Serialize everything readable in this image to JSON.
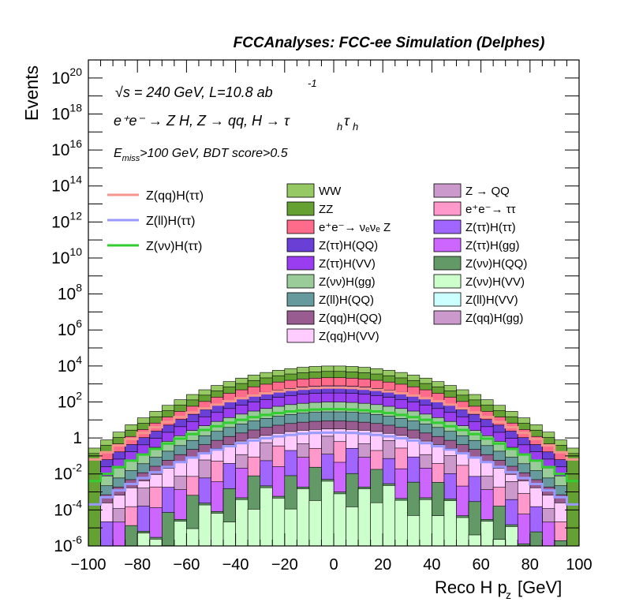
{
  "chart_data": {
    "type": "area",
    "title": "FCCAnalyses: FCC-ee Simulation (Delphes)",
    "xlabel_main": "Reco H p",
    "xlabel_sub": "z",
    "xlabel_unit": "[GeV]",
    "ylabel": "Events",
    "log_y": true,
    "xlim": [
      -100,
      100
    ],
    "ylim_exp": [
      -6,
      21
    ],
    "bin_width": 5,
    "x_ticks": [
      "−100",
      "−80",
      "−60",
      "−40",
      "−20",
      "0",
      "20",
      "40",
      "60",
      "80",
      "100"
    ],
    "y_ticks": [
      {
        "base": "10",
        "exp": "-6",
        "value_exp": -6
      },
      {
        "base": "10",
        "exp": "-4",
        "value_exp": -4
      },
      {
        "base": "10",
        "exp": "-2",
        "value_exp": -2
      },
      {
        "base": "1",
        "exp": "",
        "value_exp": 0
      },
      {
        "base": "10",
        "exp": "2",
        "value_exp": 2
      },
      {
        "base": "10",
        "exp": "4",
        "value_exp": 4
      },
      {
        "base": "10",
        "exp": "6",
        "value_exp": 6
      },
      {
        "base": "10",
        "exp": "8",
        "value_exp": 8
      },
      {
        "base": "10",
        "exp": "10",
        "value_exp": 10
      },
      {
        "base": "10",
        "exp": "12",
        "value_exp": 12
      },
      {
        "base": "10",
        "exp": "14",
        "value_exp": 14
      },
      {
        "base": "10",
        "exp": "16",
        "value_exp": 16
      },
      {
        "base": "10",
        "exp": "18",
        "value_exp": 18
      },
      {
        "base": "10",
        "exp": "20",
        "value_exp": 20
      }
    ],
    "annotations": {
      "energy": "√s = 240 GeV, L=10.8 ab",
      "energy_sup": "-1",
      "process": "e⁺e⁻ → Z H, Z → qq, H → τ",
      "process_sub1": "h",
      "process_tau": "τ",
      "process_sub2": "h",
      "cut_pre": "E",
      "cut_sub": "miss",
      "cut_post": ">100 GeV, BDT score>0.5"
    },
    "stack_peak_log10": [
      4.0,
      3.7,
      3.35,
      2.9,
      2.5,
      2.0,
      1.45,
      0.95,
      0.5,
      0.1,
      -0.2,
      -0.55,
      -1.0,
      -1.6,
      -2.4
    ],
    "stack_fill_colors": [
      "#96c864",
      "#64a032",
      "#ff6b8a",
      "#6a3fd6",
      "#9a3cf0",
      "#99cc99",
      "#679a9c",
      "#995c91",
      "#ffccff",
      "#cc99cc",
      "#ff99cc",
      "#a066ff",
      "#cc66ff",
      "#639966",
      "#ccffcc",
      "#ccffff",
      "#cc99cc"
    ],
    "signal_lines": [
      {
        "name": "Z(qq)H(ττ)",
        "color": "#f4968c",
        "peak_log10": 2.8
      },
      {
        "name": "Z(ll)H(ττ)",
        "color": "#9999ff",
        "peak_log10": 0.3
      },
      {
        "name": "Z(νν)H(ττ)",
        "color": "#33cc33",
        "peak_log10": 1.6
      }
    ],
    "legend": [
      {
        "label": "WW",
        "color": "#96c864"
      },
      {
        "label": "Z → QQ",
        "color": "#cc99cc"
      },
      {
        "label": "ZZ",
        "color": "#64a032"
      },
      {
        "label": "e⁺e⁻→ ττ",
        "color": "#ff99cc"
      },
      {
        "label": "e⁺e⁻→ νₑνₑ Z",
        "color": "#ff6b8a"
      },
      {
        "label": "Z(ττ)H(ττ)",
        "color": "#a066ff"
      },
      {
        "label": "Z(ττ)H(QQ)",
        "color": "#6a3fd6"
      },
      {
        "label": "Z(ττ)H(gg)",
        "color": "#cc66ff"
      },
      {
        "label": "Z(ττ)H(VV)",
        "color": "#9a3cf0"
      },
      {
        "label": "Z(νν)H(QQ)",
        "color": "#639966"
      },
      {
        "label": "Z(νν)H(gg)",
        "color": "#99cc99"
      },
      {
        "label": "Z(νν)H(VV)",
        "color": "#ccffcc"
      },
      {
        "label": "Z(ll)H(QQ)",
        "color": "#679a9c"
      },
      {
        "label": "Z(ll)H(VV)",
        "color": "#ccffff"
      },
      {
        "label": "Z(qq)H(QQ)",
        "color": "#995c91"
      },
      {
        "label": "Z(qq)H(gg)",
        "color": "#cc99cc"
      },
      {
        "label": "Z(qq)H(VV)",
        "color": "#ffccff"
      }
    ]
  }
}
